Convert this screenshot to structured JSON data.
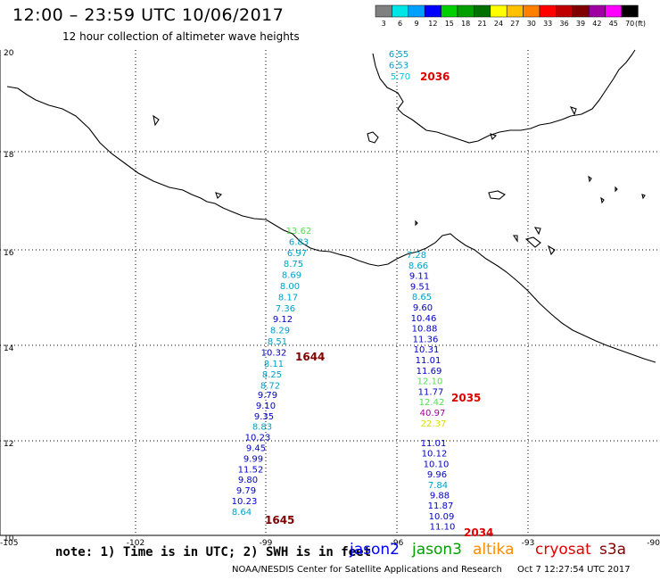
{
  "header": {
    "title": "12:00 – 23:59 UTC 10/06/2017",
    "subtitle": "12 hour collection of altimeter wave heights"
  },
  "scale": {
    "labels": [
      "3",
      "6",
      "9",
      "12",
      "15",
      "18",
      "21",
      "24",
      "27",
      "30",
      "33",
      "36",
      "39",
      "42",
      "45",
      "70"
    ],
    "unit": "(ft)",
    "colors": [
      "#808080",
      "#00e5e5",
      "#00a0ff",
      "#0000ff",
      "#00d000",
      "#00a000",
      "#007000",
      "#ffff00",
      "#ffc000",
      "#ff8000",
      "#ff0000",
      "#c00000",
      "#800000",
      "#a000a0",
      "#ff00ff",
      "#000000"
    ]
  },
  "axes": {
    "lon_labels": [
      "-105",
      "-102",
      "-99",
      "-96",
      "-93",
      "-90"
    ],
    "lat_labels": [
      "20",
      "18",
      "16",
      "14",
      "12",
      "10"
    ]
  },
  "passes": [
    {
      "time": "2036",
      "time_color": "#e00000",
      "points": [
        {
          "v": "6.55",
          "c": "#00a0c8"
        },
        {
          "v": "6.53",
          "c": "#00a0c8"
        },
        {
          "v": "5.70",
          "c": "#00c8e0"
        }
      ]
    },
    {
      "time": "1644",
      "time_color": "#800000",
      "points": [
        {
          "v": "13.62",
          "c": "#50e050"
        },
        {
          "v": "6.83",
          "c": "#00a0c8"
        },
        {
          "v": "6.97",
          "c": "#00a0c8"
        },
        {
          "v": "8.75",
          "c": "#00a0c8"
        },
        {
          "v": "8.69",
          "c": "#00a0c8"
        },
        {
          "v": "8.00",
          "c": "#00a0c8"
        },
        {
          "v": "8.17",
          "c": "#00a0c8"
        },
        {
          "v": "7.36",
          "c": "#00a0c8"
        },
        {
          "v": "9.12",
          "c": "#0000c8"
        },
        {
          "v": "8.29",
          "c": "#00a0c8"
        },
        {
          "v": "8.51",
          "c": "#00a0c8"
        },
        {
          "v": "10.32",
          "c": "#0000c8"
        },
        {
          "v": "8.11",
          "c": "#00a0c8"
        },
        {
          "v": "8.25",
          "c": "#00a0c8"
        },
        {
          "v": "8.72",
          "c": "#00a0c8"
        }
      ]
    },
    {
      "time": "1645",
      "time_color": "#800000",
      "points": [
        {
          "v": "9.79",
          "c": "#0000c8"
        },
        {
          "v": "9.10",
          "c": "#0000c8"
        },
        {
          "v": "9.35",
          "c": "#0000c8"
        },
        {
          "v": "8.83",
          "c": "#00a0c8"
        },
        {
          "v": "10.23",
          "c": "#0000c8"
        },
        {
          "v": "9.45",
          "c": "#0000c8"
        },
        {
          "v": "9.99",
          "c": "#0000c8"
        },
        {
          "v": "11.52",
          "c": "#0000c8"
        },
        {
          "v": "9.80",
          "c": "#0000c8"
        },
        {
          "v": "9.79",
          "c": "#0000c8"
        },
        {
          "v": "10.23",
          "c": "#0000c8"
        },
        {
          "v": "8.64",
          "c": "#00a0c8"
        }
      ]
    },
    {
      "time": "2035",
      "time_color": "#e00000",
      "points": [
        {
          "v": "7.28",
          "c": "#00a0c8"
        },
        {
          "v": "8.66",
          "c": "#00a0c8"
        },
        {
          "v": "9.11",
          "c": "#0000c8"
        },
        {
          "v": "9.51",
          "c": "#0000c8"
        },
        {
          "v": "8.65",
          "c": "#00a0c8"
        },
        {
          "v": "9.60",
          "c": "#0000c8"
        },
        {
          "v": "10.46",
          "c": "#0000c8"
        },
        {
          "v": "10.88",
          "c": "#0000c8"
        },
        {
          "v": "11.36",
          "c": "#0000c8"
        },
        {
          "v": "10.31",
          "c": "#0000c8"
        },
        {
          "v": "11.01",
          "c": "#0000c8"
        },
        {
          "v": "11.69",
          "c": "#0000c8"
        },
        {
          "v": "12.10",
          "c": "#50e050"
        },
        {
          "v": "11.77",
          "c": "#0000c8"
        },
        {
          "v": "12.42",
          "c": "#50e050"
        },
        {
          "v": "40.97",
          "c": "#a000a0"
        },
        {
          "v": "22.37",
          "c": "#e0e000"
        }
      ]
    },
    {
      "time": "2034",
      "time_color": "#e00000",
      "points": [
        {
          "v": "11.01",
          "c": "#0000c8"
        },
        {
          "v": "10.12",
          "c": "#0000c8"
        },
        {
          "v": "10.10",
          "c": "#0000c8"
        },
        {
          "v": "9.96",
          "c": "#0000c8"
        },
        {
          "v": "7.84",
          "c": "#00a0c8"
        },
        {
          "v": "9.88",
          "c": "#0000c8"
        },
        {
          "v": "11.87",
          "c": "#0000c8"
        },
        {
          "v": "10.09",
          "c": "#0000c8"
        },
        {
          "v": "11.10",
          "c": "#0000c8"
        }
      ]
    }
  ],
  "footer": {
    "note": "note: 1) Time is in UTC; 2) SWH is in feet",
    "satellites": [
      {
        "name": "jason2",
        "color": "#0000ff"
      },
      {
        "name": "jason3",
        "color": "#00a000"
      },
      {
        "name": "altika",
        "color": "#ff8c00"
      },
      {
        "name": "cryosat",
        "color": "#e00000"
      },
      {
        "name": "s3a",
        "color": "#800000"
      }
    ],
    "credit": "NOAA/NESDIS Center for Satellite Applications and Research",
    "timestamp": "Oct  7 12:27:54 UTC 2017"
  }
}
